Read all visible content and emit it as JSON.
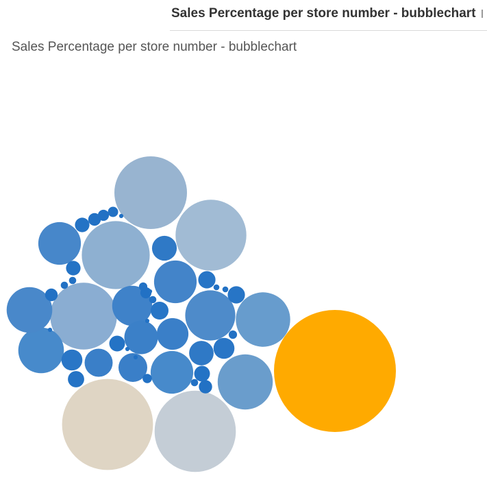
{
  "sheet": {
    "tab_title": "Sales Percentage per store number - bubblechart",
    "title": "Sales Percentage per store number - bubblechart"
  },
  "chart_data": {
    "type": "bubble",
    "title": "Sales Percentage per store number - bubblechart",
    "bubbles": [
      {
        "value": 0.0845,
        "color": "#ffaa00"
      },
      {
        "value": 0.047,
        "color": "#dfd5c4"
      },
      {
        "value": 0.0375,
        "color": "#c4cdd6"
      },
      {
        "value": 0.03,
        "color": "#98b4d0"
      },
      {
        "value": 0.0285,
        "color": "#a1bbd4"
      },
      {
        "value": 0.0262,
        "color": "#8eb0d1"
      },
      {
        "value": 0.0253,
        "color": "#8aadd2"
      },
      {
        "value": 0.0172,
        "color": "#6a9dcc"
      },
      {
        "value": 0.0168,
        "color": "#679ccd"
      },
      {
        "value": 0.0143,
        "color": "#4e8bca"
      },
      {
        "value": 0.0118,
        "color": "#478acb"
      },
      {
        "value": 0.0118,
        "color": "#4988ca"
      },
      {
        "value": 0.0103,
        "color": "#478acb"
      },
      {
        "value": 0.0103,
        "color": "#4384c9"
      },
      {
        "value": 0.0103,
        "color": "#4787ca"
      },
      {
        "value": 0.0091,
        "color": "#3f82c9"
      },
      {
        "value": 0.0064,
        "color": "#3b80c8"
      },
      {
        "value": 0.0057,
        "color": "#3a7fc8"
      },
      {
        "value": 0.0047,
        "color": "#3a7fc8"
      },
      {
        "value": 0.0045,
        "color": "#3a7fc8"
      },
      {
        "value": 0.0035,
        "color": "#2f79c6"
      },
      {
        "value": 0.0034,
        "color": "#2f79c6"
      },
      {
        "value": 0.0025,
        "color": "#2a76c6"
      },
      {
        "value": 0.0025,
        "color": "#2a76c6"
      },
      {
        "value": 0.0018,
        "color": "#2775c6"
      },
      {
        "value": 0.0017,
        "color": "#2775c6"
      },
      {
        "value": 0.0017,
        "color": "#2775c6"
      },
      {
        "value": 0.0015,
        "color": "#2473c5"
      },
      {
        "value": 0.0014,
        "color": "#2473c5"
      },
      {
        "value": 0.0014,
        "color": "#2473c5"
      },
      {
        "value": 0.0012,
        "color": "#2473c5"
      },
      {
        "value": 0.0012,
        "color": "#2473c5"
      },
      {
        "value": 0.001,
        "color": "#2271c4"
      },
      {
        "value": 0.0009,
        "color": "#2271c4"
      },
      {
        "value": 0.0009,
        "color": "#2271c4"
      },
      {
        "value": 0.0007,
        "color": "#2271c4"
      },
      {
        "value": 0.0007,
        "color": "#2271c4"
      },
      {
        "value": 0.0006,
        "color": "#2271c4"
      },
      {
        "value": 0.0005,
        "color": "#2271c4"
      },
      {
        "value": 0.0004,
        "color": "#2271c4"
      },
      {
        "value": 0.0004,
        "color": "#2271c4"
      },
      {
        "value": 0.0003,
        "color": "#2271c4"
      },
      {
        "value": 0.0003,
        "color": "#2271c4"
      },
      {
        "value": 0.0003,
        "color": "#2271c4"
      },
      {
        "value": 0.0003,
        "color": "#2271c4"
      },
      {
        "value": 0.0002,
        "color": "#2271c4"
      },
      {
        "value": 0.0002,
        "color": "#2271c4"
      },
      {
        "value": 0.0001,
        "color": "#2271c4"
      },
      {
        "value": 0.0001,
        "color": "#2271c4"
      },
      {
        "value": 0.0001,
        "color": "#2271c4"
      },
      {
        "value": 0.0001,
        "color": "#2271c4"
      },
      {
        "value": 0.0001,
        "color": "#2271c4"
      },
      {
        "value": 0.0001,
        "color": "#2271c4"
      }
    ]
  }
}
